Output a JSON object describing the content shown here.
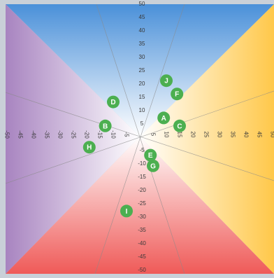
{
  "chart_data": {
    "type": "scatter",
    "xlim": [
      -50,
      50
    ],
    "ylim": [
      -50,
      50
    ],
    "x_ticks": [
      -50,
      -45,
      -40,
      -35,
      -30,
      -25,
      -20,
      -15,
      -10,
      -5,
      5,
      10,
      15,
      20,
      25,
      30,
      35,
      40,
      45,
      50
    ],
    "y_ticks": [
      50,
      45,
      40,
      35,
      30,
      25,
      20,
      15,
      10,
      5,
      -5,
      -10,
      -15,
      -20,
      -25,
      -30,
      -35,
      -40,
      -45,
      -50
    ],
    "points": [
      {
        "label": "A",
        "x": 9,
        "y": 7
      },
      {
        "label": "B",
        "x": -13,
        "y": 4
      },
      {
        "label": "C",
        "x": 15,
        "y": 4
      },
      {
        "label": "D",
        "x": -10,
        "y": 13
      },
      {
        "label": "E",
        "x": 4,
        "y": -7
      },
      {
        "label": "F",
        "x": 14,
        "y": 16
      },
      {
        "label": "G",
        "x": 5,
        "y": -11
      },
      {
        "label": "H",
        "x": -19,
        "y": -4
      },
      {
        "label": "I",
        "x": -5,
        "y": -28
      },
      {
        "label": "J",
        "x": 10,
        "y": 21
      }
    ],
    "colors": {
      "top": "#4a90d9",
      "right": "#ffc84a",
      "bottom": "#ef5a58",
      "left": "#a884c0",
      "center": "#ffffff",
      "marker": "#4caf50",
      "marker_text": "#ffffff",
      "guide_lines": "#8a8a8a",
      "tick_text": "#3a3a3a"
    }
  }
}
